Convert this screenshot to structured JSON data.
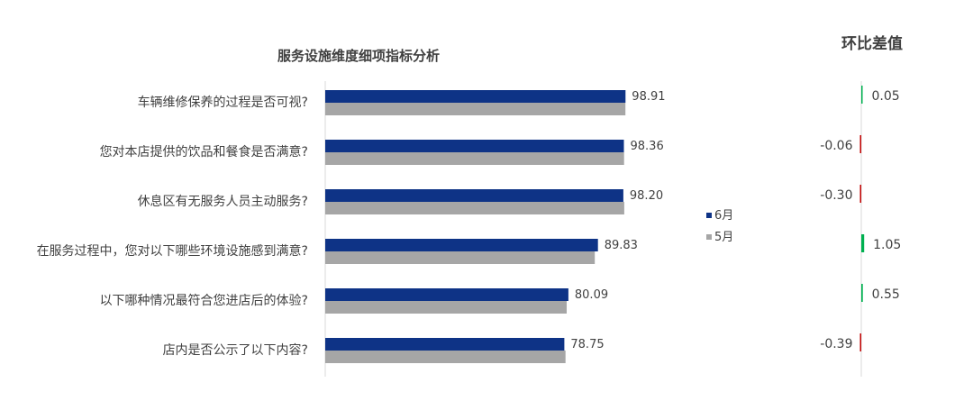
{
  "chart_data": {
    "type": "bar",
    "orientation": "horizontal",
    "title": "服务设施维度细项指标分析",
    "categories": [
      "车辆维修保养的过程是否可视?",
      "您对本店提供的饮品和餐食是否满意?",
      "休息区有无服务人员主动服务?",
      "在服务过程中，您对以下哪些环境设施感到满意?",
      "以下哪种情况最符合您进店后的体验?",
      "店内是否公示了以下内容?"
    ],
    "series": [
      {
        "name": "6月",
        "color": "#0e3386",
        "values": [
          98.91,
          98.36,
          98.2,
          89.83,
          80.09,
          78.75
        ]
      },
      {
        "name": "5月",
        "color": "#a6a6a6",
        "values": [
          98.86,
          98.42,
          98.5,
          88.78,
          79.54,
          79.14
        ]
      }
    ],
    "value_labels": [
      "98.91",
      "98.36",
      "98.20",
      "89.83",
      "80.09",
      "78.75"
    ],
    "xlim": [
      0,
      100
    ],
    "legend": "right",
    "diff_panel": {
      "title": "环比差值",
      "values": [
        0.05,
        -0.06,
        -0.3,
        1.05,
        0.55,
        -0.39
      ],
      "labels": [
        "0.05",
        "-0.06",
        "-0.30",
        "1.05",
        "0.55",
        "-0.39"
      ],
      "pos_color": "#00b050",
      "neg_color": "#c00000"
    }
  }
}
